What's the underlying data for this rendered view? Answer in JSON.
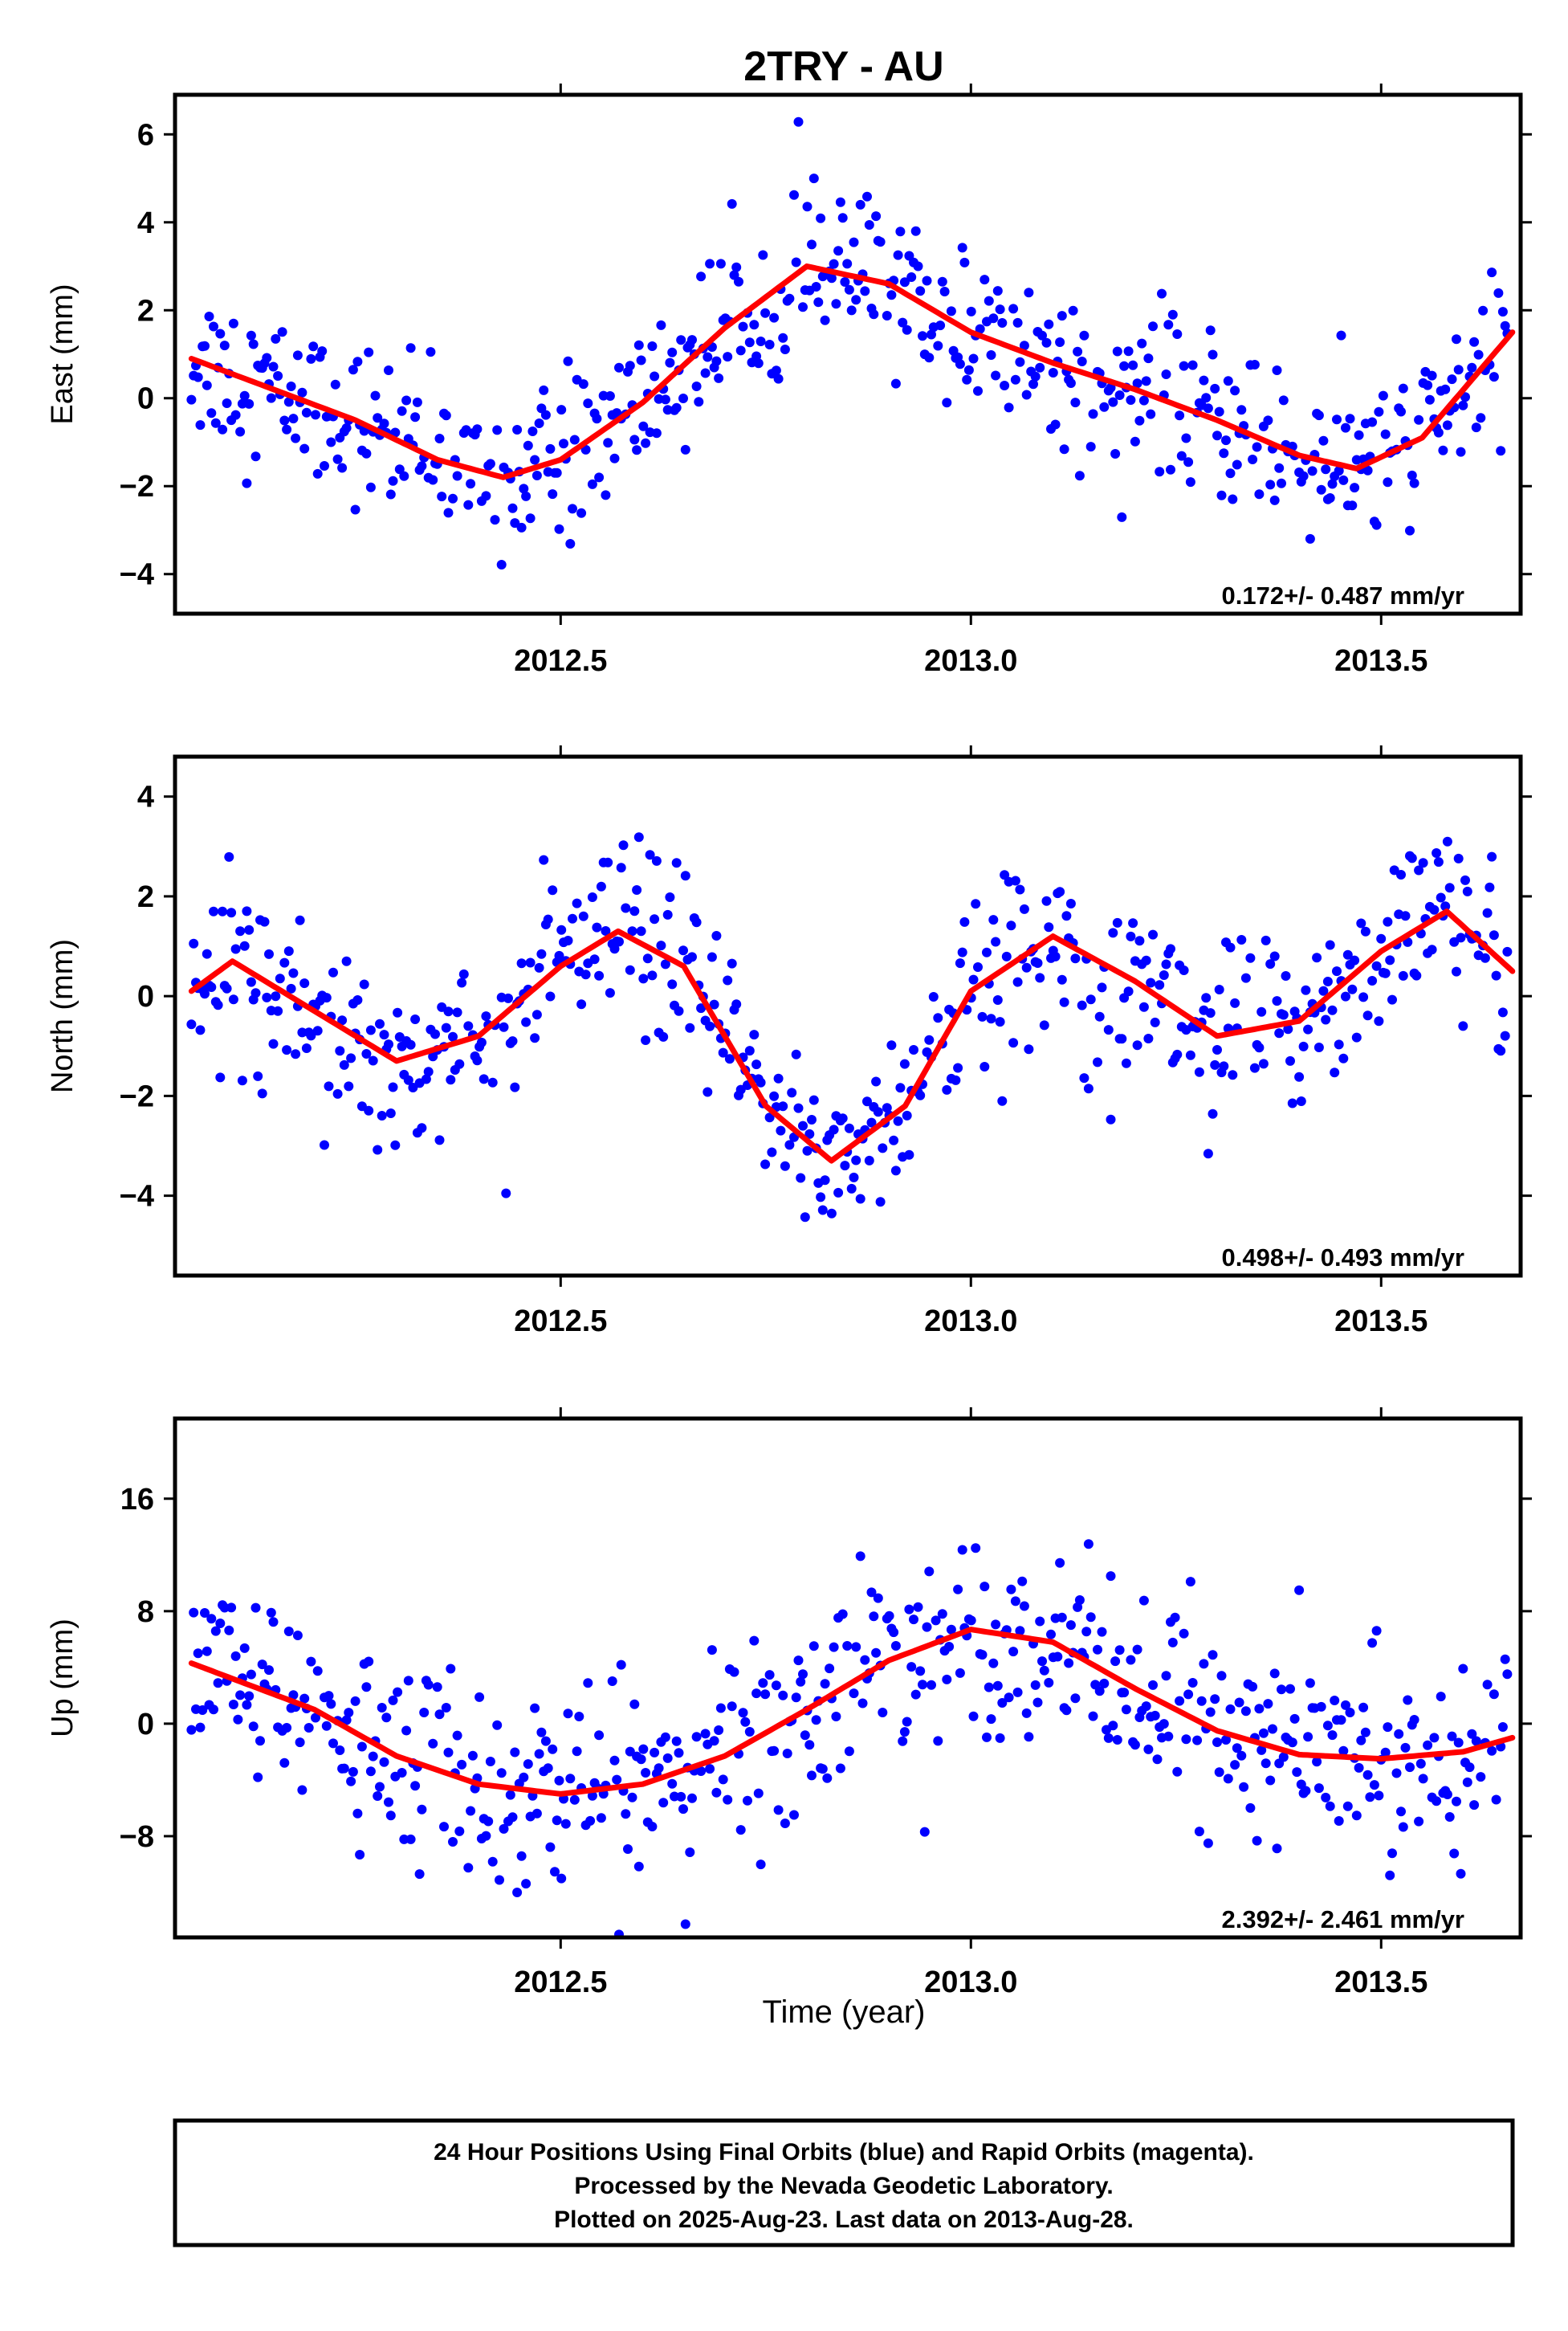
{
  "title": "2TRY - AU",
  "colors": {
    "final_orbits": "#0000ff",
    "fit": "#ff0000",
    "axes": "#000000"
  },
  "chart_data": [
    {
      "type": "scatter",
      "ylabel": "East (mm)",
      "xlabel": "",
      "xlim": [
        2012.03,
        2013.67
      ],
      "ylim": [
        -4.9,
        6.9
      ],
      "xticks": [
        2012.5,
        2013.0,
        2013.5
      ],
      "xtick_labels": [
        "2012.5",
        "2013.0",
        "2013.5"
      ],
      "yticks": [
        -4,
        -2,
        0,
        2,
        4,
        6
      ],
      "ytick_labels": [
        "−4",
        "−2",
        "0",
        "2",
        "4",
        "6"
      ],
      "rate_label": "0.172+/- 0.487 mm/yr",
      "series": [
        {
          "kind": "points",
          "points_x": [],
          "points_y": [],
          "trend": 0.0,
          "sigma": 0.9
        },
        {
          "kind": "fit",
          "x": [
            2012.05,
            2012.15,
            2012.25,
            2012.35,
            2012.43,
            2012.5,
            2012.6,
            2012.7,
            2012.8,
            2012.9,
            2013.0,
            2013.1,
            2013.2,
            2013.3,
            2013.4,
            2013.47,
            2013.55,
            2013.66
          ],
          "y": [
            0.9,
            0.2,
            -0.5,
            -1.4,
            -1.8,
            -1.4,
            -0.1,
            1.6,
            3.0,
            2.6,
            1.5,
            0.8,
            0.2,
            -0.5,
            -1.3,
            -1.6,
            -0.9,
            1.5
          ]
        }
      ]
    },
    {
      "type": "scatter",
      "ylabel": "North (mm)",
      "xlabel": "",
      "xlim": [
        2012.03,
        2013.67
      ],
      "ylim": [
        -5.6,
        4.8
      ],
      "xticks": [
        2012.5,
        2013.0,
        2013.5
      ],
      "xtick_labels": [
        "2012.5",
        "2013.0",
        "2013.5"
      ],
      "yticks": [
        -4,
        -2,
        0,
        2,
        4
      ],
      "ytick_labels": [
        "−4",
        "−2",
        "0",
        "2",
        "4"
      ],
      "rate_label": "0.498+/- 0.493 mm/yr",
      "series": [
        {
          "kind": "points",
          "points_x": [],
          "points_y": [],
          "trend": 0.0,
          "sigma": 0.9
        },
        {
          "kind": "fit",
          "x": [
            2012.05,
            2012.1,
            2012.2,
            2012.3,
            2012.4,
            2012.5,
            2012.57,
            2012.65,
            2012.75,
            2012.83,
            2012.92,
            2013.0,
            2013.1,
            2013.2,
            2013.3,
            2013.4,
            2013.5,
            2013.58,
            2013.66
          ],
          "y": [
            0.1,
            0.7,
            -0.3,
            -1.3,
            -0.8,
            0.6,
            1.3,
            0.6,
            -2.2,
            -3.3,
            -2.2,
            0.1,
            1.2,
            0.3,
            -0.8,
            -0.5,
            0.9,
            1.7,
            0.5
          ]
        }
      ]
    },
    {
      "type": "scatter",
      "ylabel": "Up (mm)",
      "xlabel": "Time (year)",
      "xlim": [
        2012.03,
        2013.67
      ],
      "ylim": [
        -15.2,
        21.7
      ],
      "xticks": [
        2012.5,
        2013.0,
        2013.5
      ],
      "xtick_labels": [
        "2012.5",
        "2013.0",
        "2013.5"
      ],
      "yticks": [
        -8,
        0,
        8,
        16
      ],
      "ytick_labels": [
        "−8",
        "0",
        "8",
        "16"
      ],
      "rate_label": "2.392+/- 2.461 mm/yr",
      "series": [
        {
          "kind": "points",
          "points_x": [],
          "points_y": [],
          "trend": 0.0,
          "sigma": 3.5
        },
        {
          "kind": "fit",
          "x": [
            2012.05,
            2012.2,
            2012.3,
            2012.4,
            2012.5,
            2012.6,
            2012.7,
            2012.8,
            2012.9,
            2013.0,
            2013.1,
            2013.2,
            2013.3,
            2013.4,
            2013.5,
            2013.6,
            2013.66
          ],
          "y": [
            4.3,
            1.0,
            -2.3,
            -4.3,
            -5.0,
            -4.3,
            -2.3,
            1.0,
            4.5,
            6.7,
            5.8,
            2.5,
            -0.5,
            -2.2,
            -2.5,
            -2.0,
            -1.0
          ]
        }
      ]
    }
  ],
  "caption": {
    "line1": "24 Hour Positions Using Final Orbits (blue) and Rapid Orbits (magenta).",
    "line2": "Processed by the Nevada Geodetic Laboratory.",
    "line3": "Plotted on 2025-Aug-23. Last data on 2013-Aug-28."
  }
}
